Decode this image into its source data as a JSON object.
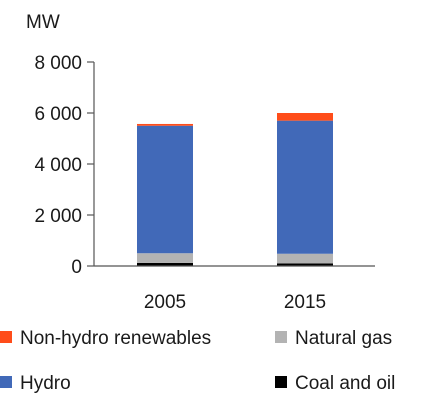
{
  "chart_data": {
    "type": "bar",
    "stacked": true,
    "unit": "MW",
    "categories": [
      "2005",
      "2015"
    ],
    "ylim": [
      0,
      8000
    ],
    "yticks": [
      0,
      2000,
      4000,
      6000,
      8000
    ],
    "ytick_labels": [
      "0",
      "2 000",
      "4 000",
      "6 000",
      "8 000"
    ],
    "grid": false,
    "legend_position": "bottom",
    "series": [
      {
        "name": "Coal and oil",
        "color": "#000000",
        "values": [
          120,
          100
        ]
      },
      {
        "name": "Natural gas",
        "color": "#b3b3b3",
        "values": [
          380,
          380
        ]
      },
      {
        "name": "Hydro",
        "color": "#4169b8",
        "values": [
          5000,
          5220
        ]
      },
      {
        "name": "Non-hydro renewables",
        "color": "#ff4d1a",
        "values": [
          70,
          300
        ]
      }
    ],
    "legend_order": [
      "Non-hydro renewables",
      "Natural gas",
      "Hydro",
      "Coal and oil"
    ]
  }
}
